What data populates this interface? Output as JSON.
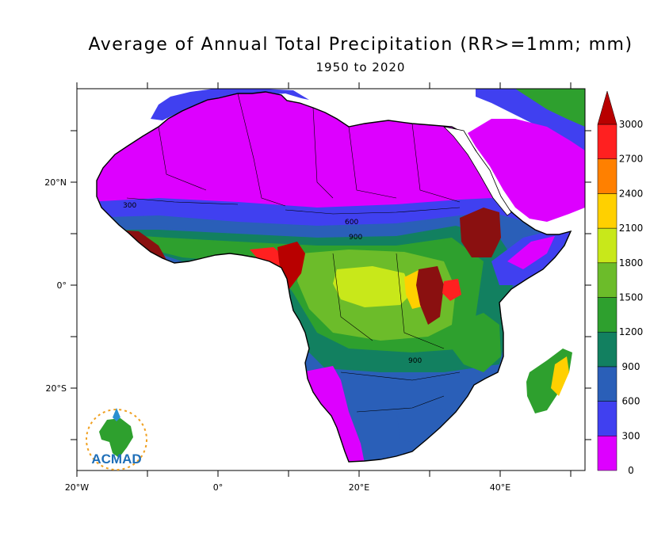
{
  "title": "Average of Annual Total Precipitation (RR>=1mm; mm)",
  "subtitle": "1950 to 2020",
  "logo": {
    "text": "ACMAD"
  },
  "axes": {
    "lat_labels": [
      "20°N",
      "0°",
      "20°S"
    ],
    "lon_labels": [
      "20°W",
      "0°",
      "20°E",
      "40°E"
    ]
  },
  "colorbar": {
    "levels": [
      "0",
      "300",
      "600",
      "900",
      "1200",
      "1500",
      "1800",
      "2100",
      "2400",
      "2700",
      "3000"
    ],
    "colors": [
      "#dd00ff",
      "#4040f0",
      "#2a5fb8",
      "#128060",
      "#2ea02e",
      "#6cbc2a",
      "#c8e81a",
      "#ffd000",
      "#ff8000",
      "#ff2020",
      "#b80000"
    ]
  },
  "map_colors": {
    "ocean": "#ffffff",
    "background": "#ffffff"
  },
  "contour_labels": [
    "300",
    "600",
    "900",
    "900"
  ]
}
